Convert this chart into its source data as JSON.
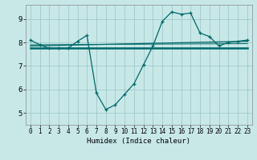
{
  "title": "",
  "xlabel": "Humidex (Indice chaleur)",
  "bg_color": "#c8e8e8",
  "grid_color": "#a0c8c8",
  "line_color": "#006868",
  "xlim": [
    -0.5,
    23.5
  ],
  "ylim": [
    4.5,
    9.6
  ],
  "xticks": [
    0,
    1,
    2,
    3,
    4,
    5,
    6,
    7,
    8,
    9,
    10,
    11,
    12,
    13,
    14,
    15,
    16,
    17,
    18,
    19,
    20,
    21,
    22,
    23
  ],
  "yticks": [
    5,
    6,
    7,
    8,
    9
  ],
  "line1_x": [
    0,
    1,
    2,
    3,
    4,
    5,
    6,
    7,
    8,
    9,
    10,
    11,
    12,
    13,
    14,
    15,
    16,
    17,
    18,
    19,
    20,
    21,
    22,
    23
  ],
  "line1_y": [
    8.1,
    7.9,
    7.75,
    7.75,
    7.75,
    8.05,
    8.3,
    5.85,
    5.15,
    5.35,
    5.8,
    6.25,
    7.05,
    7.85,
    8.9,
    9.3,
    9.2,
    9.25,
    8.4,
    8.25,
    7.85,
    8.0,
    8.05,
    8.1
  ],
  "line2_x": [
    0,
    23
  ],
  "line2_y": [
    7.75,
    7.75
  ],
  "line3_x": [
    0,
    23
  ],
  "line3_y": [
    7.85,
    8.05
  ],
  "line4_x": [
    0,
    23
  ],
  "line4_y": [
    7.9,
    7.95
  ]
}
